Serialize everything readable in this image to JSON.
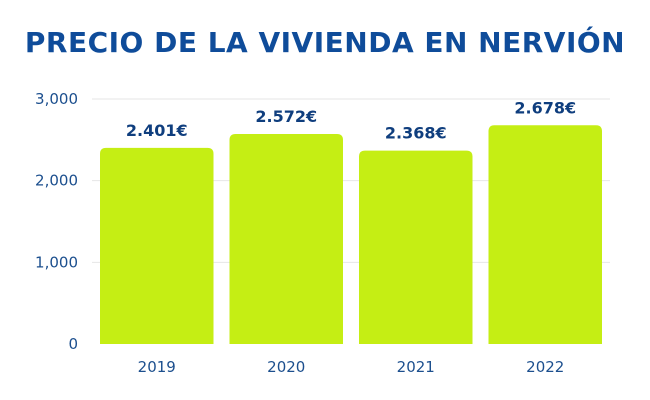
{
  "chart_data": {
    "type": "bar",
    "title": "PRECIO DE LA VIVIENDA EN NERVIÓN",
    "categories": [
      "2019",
      "2020",
      "2021",
      "2022"
    ],
    "values": [
      2401,
      2572,
      2368,
      2678
    ],
    "data_labels": [
      "2.401€",
      "2.572€",
      "2.368€",
      "2.678€"
    ],
    "xlabel": "",
    "ylabel": "",
    "ylim": [
      0,
      3000
    ],
    "yticks": [
      0,
      1000,
      2000,
      3000
    ],
    "ytick_labels": [
      "0",
      "1,000",
      "2,000",
      "3,000"
    ],
    "grid": true,
    "legend": "none",
    "colors": {
      "bar": "#c5ee14",
      "title": "#0f4c9a",
      "label": "#0f3e7e",
      "tick": "#1c4f8e",
      "grid": "#e6e6e6"
    }
  }
}
